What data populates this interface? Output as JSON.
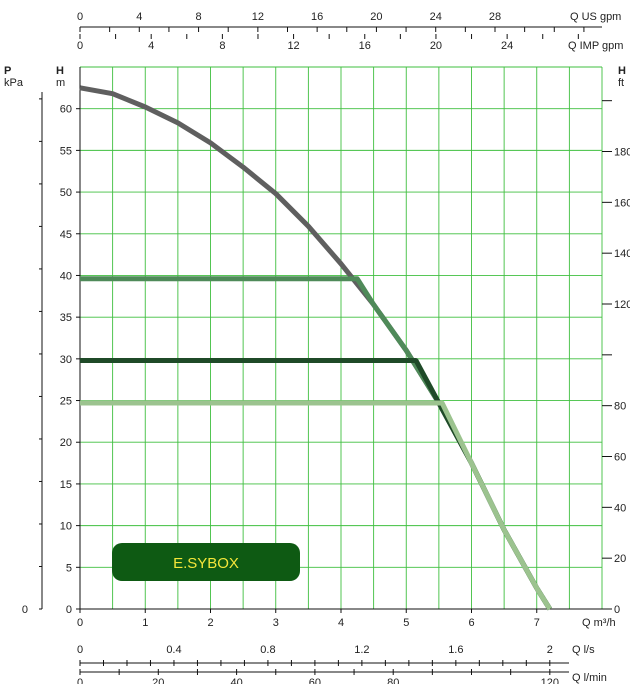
{
  "chart_data": {
    "type": "line",
    "product_label": "E.SYBOX",
    "colors": {
      "grid": "#3fbf3f",
      "badge_fill": "#0e5a13",
      "badge_text": "#f4e63a",
      "max_curve": "#5f5f5f",
      "curve_40": "#4f8a59",
      "curve_30": "#1f4a28",
      "curve_25": "#9cc38f"
    },
    "axes": {
      "q_m3h": {
        "unit": "Q m³/h",
        "range": [
          0,
          8
        ],
        "ticks": [
          "0",
          "1",
          "2",
          "3",
          "4",
          "5",
          "6",
          "7"
        ]
      },
      "q_ls": {
        "unit": "Q l/s",
        "range": [
          0,
          2.2222
        ],
        "ticks": [
          "0",
          "0.4",
          "0.8",
          "1.2",
          "1.6",
          "2"
        ]
      },
      "q_lmin": {
        "unit": "Q l/min",
        "range": [
          0,
          133.33
        ],
        "ticks": [
          "0",
          "20",
          "40",
          "60",
          "80",
          "120"
        ]
      },
      "q_usgpm": {
        "unit": "Q US gpm",
        "range": [
          0,
          35.22
        ],
        "ticks": [
          "0",
          "4",
          "8",
          "12",
          "16",
          "20",
          "24",
          "28"
        ]
      },
      "q_impgpm": {
        "unit": "Q IMP gpm",
        "range": [
          0,
          29.33
        ],
        "ticks": [
          "0",
          "4",
          "8",
          "12",
          "16",
          "20",
          "24"
        ]
      },
      "h_m": {
        "head": "H",
        "unit": "m",
        "range": [
          0,
          65
        ],
        "ticks": [
          "0",
          "5",
          "10",
          "15",
          "20",
          "25",
          "30",
          "35",
          "40",
          "45",
          "50",
          "55",
          "60"
        ]
      },
      "h_ft": {
        "head": "H",
        "unit": "ft",
        "range": [
          0,
          213.25
        ],
        "ticks": [
          "0",
          "20",
          "40",
          "60",
          "80",
          "120",
          "140",
          "160",
          "180"
        ]
      },
      "p_kpa": {
        "head": "P",
        "unit": "kPa",
        "range": [
          0,
          637.5
        ],
        "ticks": [
          "0"
        ]
      }
    },
    "series": [
      {
        "x": [
          0,
          0.5,
          1,
          1.5,
          2,
          2.5,
          3,
          3.5,
          4,
          4.5,
          5,
          5.5,
          6,
          6.5,
          7,
          7.2
        ],
        "y": [
          62.5,
          61.8,
          60.2,
          58.3,
          55.9,
          53.0,
          49.8,
          45.9,
          41.4,
          36.5,
          31.0,
          24.7,
          17.5,
          9.5,
          2.5,
          0
        ]
      },
      {
        "x": [
          0,
          4.25,
          4.5,
          5,
          5.5,
          6,
          6.5,
          7,
          7.2
        ],
        "y": [
          39.6,
          39.6,
          36.5,
          31.0,
          24.7,
          17.5,
          9.5,
          2.5,
          0
        ]
      },
      {
        "x": [
          0,
          5.15,
          5.5,
          6,
          6.5,
          7,
          7.2
        ],
        "y": [
          29.8,
          29.8,
          24.7,
          17.5,
          9.5,
          2.5,
          0
        ]
      },
      {
        "x": [
          0,
          5.55,
          6,
          6.5,
          7,
          7.2
        ],
        "y": [
          24.7,
          24.7,
          17.5,
          9.5,
          2.5,
          0
        ]
      }
    ]
  }
}
